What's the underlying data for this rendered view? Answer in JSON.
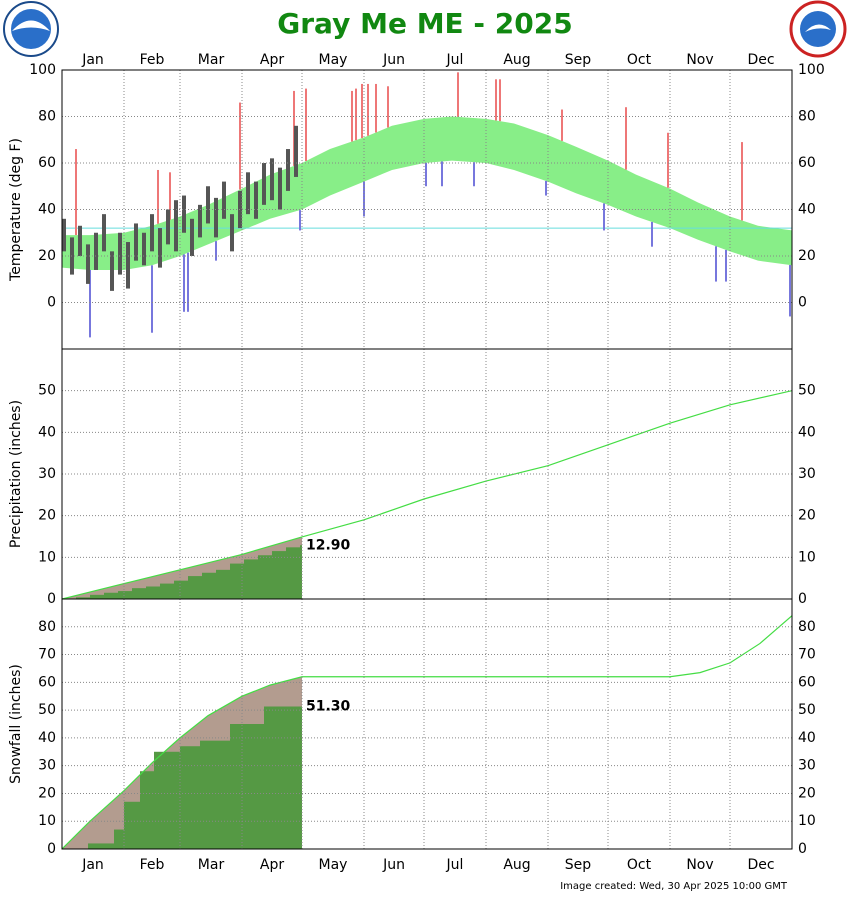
{
  "title": "Gray Me ME - 2025",
  "footer": "Image created: Wed, 30 Apr 2025 10:00 GMT",
  "chart_data": [
    {
      "type": "temperature",
      "ylabel": "Temperature (deg F)",
      "categories": [
        "Jan",
        "Feb",
        "Mar",
        "Apr",
        "May",
        "Jun",
        "Jul",
        "Aug",
        "Sep",
        "Oct",
        "Nov",
        "Dec"
      ],
      "xlim": [
        1,
        366
      ],
      "xticks": [
        1,
        32,
        60,
        91,
        121,
        152,
        182,
        213,
        244,
        274,
        305,
        335
      ],
      "ylim": [
        -20,
        100
      ],
      "yticks": [
        0,
        20,
        40,
        60,
        80,
        100
      ],
      "reference_line": {
        "value": 32,
        "color": "#66dddd"
      },
      "normal": {
        "color": "#88ee88",
        "x": [
          1,
          15,
          32,
          46,
          60,
          74,
          91,
          105,
          121,
          135,
          152,
          166,
          182,
          196,
          213,
          227,
          244,
          258,
          274,
          288,
          305,
          319,
          335,
          349,
          366
        ],
        "high": [
          29,
          29,
          30,
          33,
          37,
          42,
          49,
          55,
          60,
          66,
          71,
          76,
          79,
          80,
          79,
          77,
          72,
          67,
          61,
          55,
          49,
          43,
          37,
          33,
          31
        ],
        "low": [
          15,
          14,
          14,
          16,
          20,
          25,
          31,
          36,
          40,
          46,
          52,
          57,
          60,
          61,
          60,
          57,
          52,
          47,
          42,
          37,
          32,
          27,
          22,
          18,
          16
        ]
      },
      "observed": {
        "color": "#555555",
        "x": [
          2,
          6,
          10,
          14,
          18,
          22,
          26,
          30,
          34,
          38,
          42,
          46,
          50,
          54,
          58,
          62,
          66,
          70,
          74,
          78,
          82,
          86,
          90,
          94,
          98,
          102,
          106,
          110,
          114,
          118
        ],
        "high": [
          36,
          28,
          33,
          25,
          30,
          38,
          22,
          30,
          26,
          34,
          30,
          38,
          32,
          40,
          44,
          46,
          36,
          42,
          50,
          45,
          52,
          38,
          48,
          56,
          52,
          60,
          62,
          58,
          66,
          76
        ],
        "low": [
          22,
          12,
          20,
          8,
          14,
          22,
          5,
          12,
          6,
          18,
          16,
          22,
          15,
          25,
          22,
          30,
          20,
          28,
          34,
          28,
          36,
          22,
          32,
          38,
          36,
          42,
          44,
          40,
          48,
          54
        ]
      },
      "record_high": {
        "color": "#ee7777",
        "x": [
          8,
          49,
          55,
          90,
          117,
          123,
          146,
          148,
          151,
          154,
          158,
          164,
          199,
          218,
          220,
          251,
          283,
          304,
          341
        ],
        "values": [
          66,
          57,
          56,
          86,
          91,
          92,
          91,
          92,
          94,
          94,
          94,
          93,
          99,
          96,
          96,
          83,
          84,
          73,
          69
        ]
      },
      "record_low": {
        "color": "#7777dd",
        "x": [
          15,
          46,
          62,
          64,
          78,
          120,
          152,
          183,
          191,
          207,
          243,
          272,
          296,
          328,
          333,
          365
        ],
        "values": [
          -15,
          -13,
          -4,
          -4,
          18,
          31,
          37,
          50,
          50,
          50,
          46,
          31,
          24,
          9,
          9,
          -6
        ]
      }
    },
    {
      "type": "cumulative",
      "ylabel": "Precipitation (inches)",
      "xlim": [
        1,
        366
      ],
      "xticks": [
        1,
        32,
        60,
        91,
        121,
        152,
        182,
        213,
        244,
        274,
        305,
        335
      ],
      "ylim": [
        0,
        60
      ],
      "yticks": [
        0,
        10,
        20,
        30,
        40,
        50
      ],
      "normal": {
        "color": "#44dd44",
        "area_color": "#b39c8f",
        "area_end": 121,
        "x": [
          1,
          32,
          60,
          91,
          121,
          152,
          182,
          213,
          244,
          274,
          305,
          335,
          366
        ],
        "values": [
          0,
          3.7,
          7.0,
          10.7,
          14.9,
          19,
          24,
          28.3,
          32,
          37,
          42.2,
          46.6,
          50
        ]
      },
      "observed": {
        "color": "#559944",
        "x": [
          1,
          8,
          15,
          22,
          29,
          36,
          43,
          50,
          57,
          64,
          71,
          78,
          85,
          92,
          99,
          106,
          113,
          120
        ],
        "values": [
          0,
          0.4,
          1.0,
          1.5,
          1.9,
          2.6,
          3.0,
          3.7,
          4.4,
          5.5,
          6.3,
          7.0,
          8.5,
          9.5,
          10.5,
          11.5,
          12.4,
          12.9
        ]
      },
      "annotation": {
        "value": 12.9,
        "label": "12.90"
      }
    },
    {
      "type": "cumulative",
      "ylabel": "Snowfall (inches)",
      "categories": [
        "Jan",
        "Feb",
        "Mar",
        "Apr",
        "May",
        "Jun",
        "Jul",
        "Aug",
        "Sep",
        "Oct",
        "Nov",
        "Dec"
      ],
      "xlim": [
        1,
        366
      ],
      "xticks": [
        1,
        32,
        60,
        91,
        121,
        152,
        182,
        213,
        244,
        274,
        305,
        335
      ],
      "ylim": [
        0,
        90
      ],
      "yticks": [
        0,
        10,
        20,
        30,
        40,
        50,
        60,
        70,
        80
      ],
      "normal": {
        "color": "#44dd44",
        "area_color": "#b39c8f",
        "area_end": 121,
        "x": [
          1,
          15,
          32,
          46,
          60,
          74,
          91,
          105,
          121,
          305,
          320,
          335,
          350,
          366
        ],
        "values": [
          0,
          10,
          21,
          31,
          40,
          48,
          55,
          59,
          62,
          62,
          63.5,
          67,
          74,
          84
        ]
      },
      "observed": {
        "color": "#559944",
        "x": [
          1,
          14,
          27,
          32,
          40,
          47,
          60,
          70,
          85,
          102,
          120
        ],
        "values": [
          0,
          2,
          7,
          17,
          28,
          35,
          37,
          39,
          45,
          51.3,
          51.3
        ]
      },
      "annotation": {
        "value": 51.3,
        "label": "51.30"
      }
    }
  ]
}
